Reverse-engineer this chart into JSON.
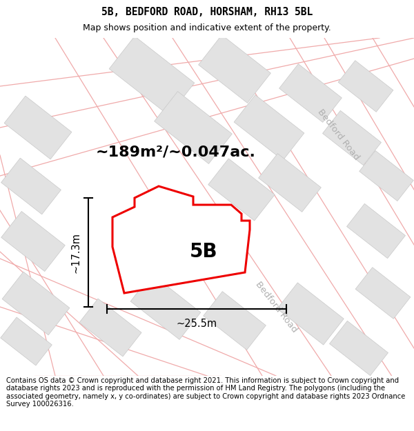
{
  "title": "5B, BEDFORD ROAD, HORSHAM, RH13 5BL",
  "subtitle": "Map shows position and indicative extent of the property.",
  "area_text": "~189m²/~0.047ac.",
  "label_5B": "5B",
  "dim_width": "~25.5m",
  "dim_height": "~17.3m",
  "road_label_1": "Bedford Road",
  "road_label_2": "Bedford Road",
  "footer": "Contains OS data © Crown copyright and database right 2021. This information is subject to Crown copyright and database rights 2023 and is reproduced with the permission of HM Land Registry. The polygons (including the associated geometry, namely x, y co-ordinates) are subject to Crown copyright and database rights 2023 Ordnance Survey 100026316.",
  "bg_color": "#f2f2f2",
  "block_color": "#e2e2e2",
  "red_line_color": "#ee0000",
  "road_line_color": "#f0aaaa",
  "title_fontsize": 10.5,
  "subtitle_fontsize": 9,
  "footer_fontsize": 7.2,
  "area_fontsize": 16,
  "label_fontsize": 20,
  "dim_fontsize": 10.5
}
